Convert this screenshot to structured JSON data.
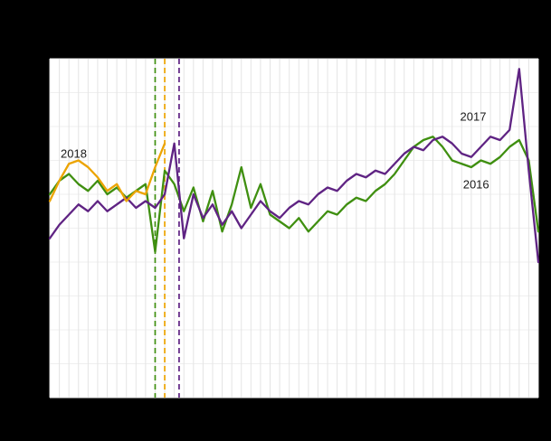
{
  "canvas": {
    "background": "#000000",
    "plot_background": "#ffffff"
  },
  "chart_data": {
    "type": "line",
    "title": "",
    "xlabel": "",
    "ylabel": "",
    "x_unit": "week of year (weekly data points, week 1 at left edge)",
    "xlim": [
      1,
      52
    ],
    "ylim": [
      0,
      100
    ],
    "grid": {
      "v_color": "#e4e4e4",
      "h_color": "#efefef",
      "h_step": 10,
      "note": "dense vertical gridline per week, faint horizontal gridlines"
    },
    "legend": "inline year labels next to lines",
    "series": [
      {
        "name": "2016",
        "color": "#3f8f10",
        "week_start": 1,
        "values": [
          60,
          64,
          66,
          63,
          61,
          64,
          60,
          62,
          59,
          61,
          63,
          43,
          67,
          63,
          55,
          62,
          52,
          61,
          49,
          57,
          68,
          56,
          63,
          54,
          52,
          50,
          53,
          49,
          52,
          55,
          54,
          57,
          59,
          58,
          61,
          63,
          66,
          70,
          74,
          76,
          77,
          74,
          70,
          69,
          68,
          70,
          69,
          71,
          74,
          76,
          70,
          49
        ]
      },
      {
        "name": "2017",
        "color": "#5f2383",
        "week_start": 1,
        "values": [
          47,
          51,
          54,
          57,
          55,
          58,
          55,
          57,
          59,
          56,
          58,
          56,
          60,
          75,
          47,
          60,
          53,
          57,
          51,
          55,
          50,
          54,
          58,
          55,
          53,
          56,
          58,
          57,
          60,
          62,
          61,
          64,
          66,
          65,
          67,
          66,
          69,
          72,
          74,
          73,
          76,
          77,
          75,
          72,
          71,
          74,
          77,
          76,
          79,
          97,
          67,
          40
        ]
      },
      {
        "name": "2018",
        "color": "#eca400",
        "week_start": 1,
        "values": [
          58,
          64,
          69,
          70,
          68,
          65,
          61,
          63,
          58,
          61,
          60,
          68,
          75
        ]
      }
    ],
    "annotations": {
      "vlines": [
        {
          "series": "2016",
          "week": 12,
          "color": "#3f8f10",
          "style": "dashed"
        },
        {
          "series": "2018",
          "week": 13,
          "color": "#eca400",
          "style": "dashed"
        },
        {
          "series": "2017",
          "week": 14.5,
          "color": "#5f2383",
          "style": "dashed"
        }
      ],
      "labels": [
        {
          "text": "2018",
          "week": 3.5,
          "value": 72
        },
        {
          "text": "2017",
          "week": 45.2,
          "value": 83
        },
        {
          "text": "2016",
          "week": 45.5,
          "value": 63
        }
      ]
    }
  }
}
